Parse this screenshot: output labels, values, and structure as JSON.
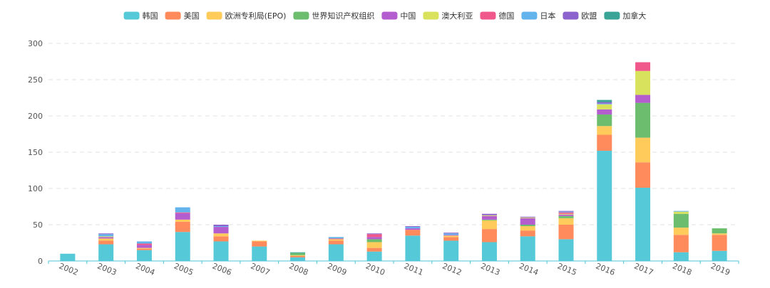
{
  "chart_data": {
    "type": "bar",
    "stacked": true,
    "title": "",
    "xlabel": "",
    "ylabel": "",
    "ylim": [
      0,
      300
    ],
    "yticks": [
      "0",
      "50",
      "100",
      "150",
      "200",
      "250",
      "300"
    ],
    "grid": true,
    "legend_position": "top-center",
    "categories": [
      "2002",
      "2003",
      "2004",
      "2005",
      "2006",
      "2007",
      "2008",
      "2009",
      "2010",
      "2011",
      "2012",
      "2013",
      "2014",
      "2015",
      "2016",
      "2017",
      "2018",
      "2019"
    ],
    "series": [
      {
        "name": "韩国",
        "color": "#56c9d8",
        "values": [
          10,
          23,
          15,
          40,
          27,
          20,
          5,
          23,
          13,
          35,
          28,
          26,
          34,
          30,
          152,
          101,
          12,
          14
        ]
      },
      {
        "name": "美国",
        "color": "#ff8a5c",
        "values": [
          0,
          5,
          2,
          14,
          7,
          7,
          2,
          5,
          5,
          8,
          5,
          18,
          8,
          20,
          22,
          35,
          24,
          22
        ]
      },
      {
        "name": "欧洲专利局(EPO)",
        "color": "#ffcc5c",
        "values": [
          0,
          3,
          1,
          3,
          4,
          1,
          1,
          2,
          8,
          0,
          2,
          12,
          6,
          9,
          12,
          34,
          10,
          2
        ]
      },
      {
        "name": "世界知识产权组织",
        "color": "#6dbd6e",
        "values": [
          0,
          0,
          0,
          0,
          0,
          0,
          3,
          0,
          4,
          0,
          0,
          1,
          2,
          3,
          16,
          48,
          19,
          7
        ]
      },
      {
        "name": "中国",
        "color": "#b45dcf",
        "values": [
          0,
          2,
          4,
          9,
          9,
          0,
          0,
          0,
          3,
          2,
          1,
          5,
          9,
          2,
          7,
          11,
          0,
          0
        ]
      },
      {
        "name": "澳大利亚",
        "color": "#d9e25c",
        "values": [
          0,
          1,
          0,
          0,
          0,
          0,
          0,
          0,
          0,
          0,
          0,
          1,
          1,
          1,
          7,
          33,
          3,
          0
        ]
      },
      {
        "name": "德国",
        "color": "#f0578a",
        "values": [
          0,
          0,
          2,
          1,
          0,
          0,
          0,
          1,
          4,
          0,
          0,
          0,
          0,
          2,
          0,
          12,
          0,
          0
        ]
      },
      {
        "name": "日本",
        "color": "#63b3ed",
        "values": [
          0,
          3,
          3,
          7,
          1,
          0,
          0,
          2,
          0,
          2,
          2,
          0,
          0,
          1,
          1,
          0,
          1,
          0
        ]
      },
      {
        "name": "欧盟",
        "color": "#8c62cc",
        "values": [
          0,
          1,
          0,
          0,
          2,
          0,
          0,
          0,
          1,
          1,
          1,
          2,
          1,
          1,
          2,
          0,
          0,
          0
        ]
      },
      {
        "name": "加拿大",
        "color": "#3aa597",
        "values": [
          0,
          0,
          0,
          0,
          0,
          0,
          1,
          0,
          0,
          0,
          0,
          0,
          0,
          0,
          3,
          0,
          0,
          0
        ]
      }
    ]
  }
}
